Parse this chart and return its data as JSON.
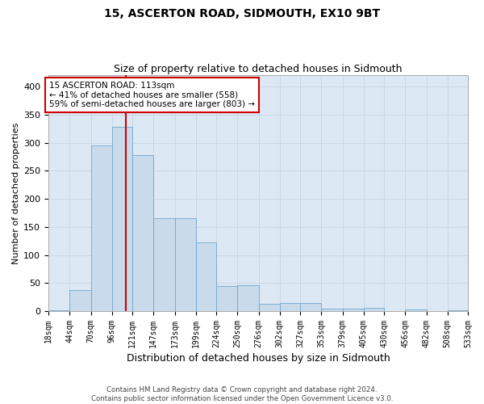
{
  "title": "15, ASCERTON ROAD, SIDMOUTH, EX10 9BT",
  "subtitle": "Size of property relative to detached houses in Sidmouth",
  "xlabel": "Distribution of detached houses by size in Sidmouth",
  "ylabel": "Number of detached properties",
  "footer_line1": "Contains HM Land Registry data © Crown copyright and database right 2024.",
  "footer_line2": "Contains public sector information licensed under the Open Government Licence v3.0.",
  "annotation_line1": "15 ASCERTON ROAD: 113sqm",
  "annotation_line2": "← 41% of detached houses are smaller (558)",
  "annotation_line3": "59% of semi-detached houses are larger (803) →",
  "bin_edges": [
    18,
    44,
    70,
    96,
    121,
    147,
    173,
    199,
    224,
    250,
    276,
    302,
    327,
    353,
    379,
    405,
    430,
    456,
    482,
    508,
    533
  ],
  "bin_counts": [
    2,
    38,
    295,
    328,
    278,
    165,
    165,
    123,
    45,
    46,
    13,
    14,
    14,
    5,
    5,
    6,
    0,
    3,
    0,
    2
  ],
  "bar_facecolor": "#c9daea",
  "bar_edgecolor": "#6fa8d0",
  "vline_color": "#cc0000",
  "vline_x": 113,
  "annotation_box_edgecolor": "#cc0000",
  "annotation_box_facecolor": "white",
  "grid_color": "#c8d4e4",
  "background_color": "#dce8f4",
  "ylim": [
    0,
    420
  ],
  "yticks": [
    0,
    50,
    100,
    150,
    200,
    250,
    300,
    350,
    400
  ],
  "title_fontsize": 10,
  "subtitle_fontsize": 9,
  "tick_fontsize": 7,
  "ylabel_fontsize": 8,
  "xlabel_fontsize": 9
}
